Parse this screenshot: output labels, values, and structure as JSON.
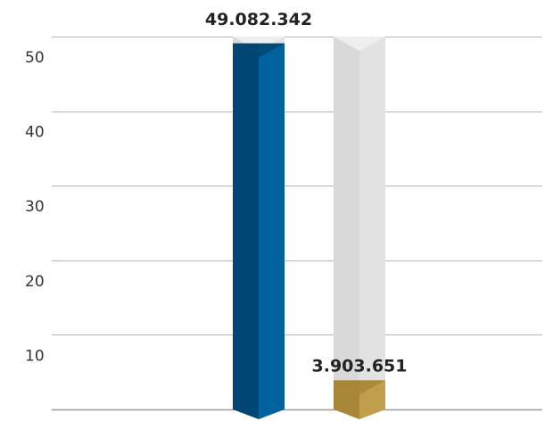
{
  "chart_data": {
    "type": "bar",
    "title": "",
    "xlabel": "",
    "ylabel": "",
    "ylim": [
      0,
      50
    ],
    "yticks": [
      10,
      20,
      30,
      40,
      50
    ],
    "yticks_labels": [
      "10",
      "20",
      "30",
      "40",
      "50"
    ],
    "grid": true,
    "series": [
      {
        "value": 49.082342,
        "label": "49.082.342",
        "color": "#00639e",
        "color_dark": "#004674"
      },
      {
        "value": 3.903651,
        "label": "3.903.651",
        "color": "#c09e4b",
        "color_dark": "#a78737"
      }
    ],
    "background_column_color": "#e2e2e2"
  }
}
